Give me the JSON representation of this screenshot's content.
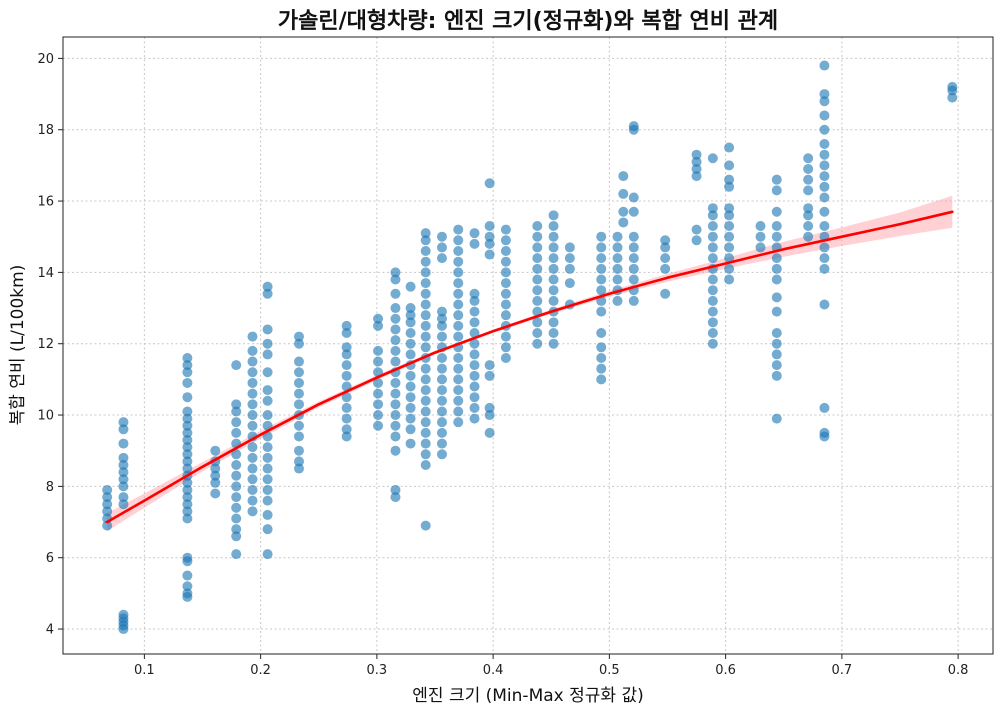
{
  "chart_data": {
    "type": "scatter",
    "title": "가솔린/대형차량: 엔진 크기(정규화)와 복합 연비 관계",
    "xlabel": "엔진 크기 (Min-Max 정규화 값)",
    "ylabel": "복합 연비 (L/100km)",
    "xlim": [
      0.03,
      0.83
    ],
    "ylim": [
      3.3,
      20.6
    ],
    "x_ticks": [
      0.1,
      0.2,
      0.3,
      0.4,
      0.5,
      0.6,
      0.7,
      0.8
    ],
    "x_tick_labels": [
      "0.1",
      "0.2",
      "0.3",
      "0.4",
      "0.5",
      "0.6",
      "0.7",
      "0.8"
    ],
    "y_ticks": [
      4,
      6,
      8,
      10,
      12,
      14,
      16,
      18,
      20
    ],
    "y_tick_labels": [
      "4",
      "6",
      "8",
      "10",
      "12",
      "14",
      "16",
      "18",
      "20"
    ],
    "grid": true,
    "colors": {
      "points": "#1f77b4",
      "trend": "#ff0000",
      "band": "#ff9aa2"
    },
    "scatter_columns": [
      {
        "x": 0.068,
        "y": [
          6.9,
          7.1,
          7.3,
          7.5,
          7.7,
          7.9
        ]
      },
      {
        "x": 0.082,
        "y": [
          4.0,
          4.1,
          4.2,
          4.3,
          4.4,
          7.5,
          7.7,
          8.0,
          8.2,
          8.4,
          8.6,
          8.8,
          9.2,
          9.6,
          9.8
        ]
      },
      {
        "x": 0.137,
        "y": [
          4.9,
          5.0,
          5.2,
          5.5,
          5.9,
          6.0,
          7.1,
          7.3,
          7.5,
          7.7,
          7.9,
          8.1,
          8.3,
          8.5,
          8.7,
          8.9,
          9.1,
          9.3,
          9.5,
          9.7,
          9.9,
          10.1,
          10.5,
          10.9,
          11.2,
          11.4,
          11.6
        ]
      },
      {
        "x": 0.161,
        "y": [
          7.8,
          8.1,
          8.3,
          8.5,
          8.7,
          9.0
        ]
      },
      {
        "x": 0.179,
        "y": [
          6.1,
          6.6,
          6.8,
          7.1,
          7.4,
          7.7,
          8.0,
          8.3,
          8.6,
          8.9,
          9.2,
          9.5,
          9.8,
          10.1,
          10.3,
          11.4
        ]
      },
      {
        "x": 0.193,
        "y": [
          7.3,
          7.6,
          7.9,
          8.2,
          8.5,
          8.8,
          9.1,
          9.4,
          9.7,
          10.0,
          10.3,
          10.6,
          10.9,
          11.2,
          11.5,
          11.8,
          12.2
        ]
      },
      {
        "x": 0.206,
        "y": [
          6.1,
          6.8,
          7.2,
          7.6,
          7.9,
          8.2,
          8.5,
          8.8,
          9.1,
          9.4,
          9.7,
          10.0,
          10.4,
          10.7,
          11.2,
          11.7,
          12.0,
          12.4,
          13.4,
          13.6
        ]
      },
      {
        "x": 0.233,
        "y": [
          8.5,
          8.7,
          9.0,
          9.4,
          9.7,
          10.0,
          10.3,
          10.6,
          10.9,
          11.2,
          11.5,
          12.0,
          12.2
        ]
      },
      {
        "x": 0.274,
        "y": [
          9.4,
          9.6,
          9.9,
          10.2,
          10.5,
          10.8,
          11.1,
          11.4,
          11.7,
          11.9,
          12.3,
          12.5
        ]
      },
      {
        "x": 0.301,
        "y": [
          9.7,
          10.0,
          10.3,
          10.6,
          10.9,
          11.2,
          11.5,
          11.8,
          12.5,
          12.7
        ]
      },
      {
        "x": 0.316,
        "y": [
          7.7,
          7.9,
          9.0,
          9.4,
          9.7,
          10.0,
          10.3,
          10.6,
          10.9,
          11.2,
          11.5,
          11.8,
          12.1,
          12.4,
          12.7,
          13.0,
          13.4,
          13.8,
          14.0
        ]
      },
      {
        "x": 0.329,
        "y": [
          9.2,
          9.6,
          9.9,
          10.2,
          10.5,
          10.8,
          11.1,
          11.4,
          11.7,
          12.0,
          12.3,
          12.6,
          12.8,
          13.0,
          13.6
        ]
      },
      {
        "x": 0.342,
        "y": [
          6.9,
          8.6,
          8.9,
          9.2,
          9.5,
          9.8,
          10.1,
          10.4,
          10.7,
          11.0,
          11.3,
          11.6,
          11.9,
          12.2,
          12.5,
          12.8,
          13.1,
          13.4,
          13.7,
          14.0,
          14.3,
          14.6,
          14.9,
          15.1
        ]
      },
      {
        "x": 0.356,
        "y": [
          8.9,
          9.2,
          9.5,
          9.8,
          10.1,
          10.4,
          10.7,
          11.0,
          11.3,
          11.6,
          11.9,
          12.2,
          12.5,
          12.7,
          12.9,
          14.4,
          14.7,
          15.0
        ]
      },
      {
        "x": 0.37,
        "y": [
          9.8,
          10.1,
          10.4,
          10.7,
          11.0,
          11.3,
          11.6,
          11.9,
          12.2,
          12.5,
          12.8,
          13.1,
          13.4,
          13.7,
          14.0,
          14.3,
          14.6,
          14.9,
          15.2
        ]
      },
      {
        "x": 0.384,
        "y": [
          9.9,
          10.2,
          10.5,
          10.8,
          11.1,
          11.4,
          11.7,
          12.0,
          12.3,
          12.6,
          12.9,
          13.2,
          13.4,
          14.8,
          15.1
        ]
      },
      {
        "x": 0.397,
        "y": [
          9.5,
          10.0,
          10.2,
          11.1,
          11.4,
          14.5,
          14.8,
          15.0,
          15.3,
          16.5
        ]
      },
      {
        "x": 0.411,
        "y": [
          11.6,
          11.9,
          12.2,
          12.5,
          12.8,
          13.1,
          13.4,
          13.7,
          14.0,
          14.3,
          14.6,
          14.9,
          15.2
        ]
      },
      {
        "x": 0.438,
        "y": [
          12.0,
          12.3,
          12.6,
          12.9,
          13.2,
          13.5,
          13.8,
          14.1,
          14.4,
          14.7,
          15.0,
          15.3
        ]
      },
      {
        "x": 0.452,
        "y": [
          12.0,
          12.3,
          12.6,
          12.9,
          13.2,
          13.5,
          13.8,
          14.1,
          14.4,
          14.7,
          15.0,
          15.3,
          15.6
        ]
      },
      {
        "x": 0.466,
        "y": [
          13.1,
          13.7,
          14.1,
          14.4,
          14.7
        ]
      },
      {
        "x": 0.493,
        "y": [
          11.0,
          11.3,
          11.6,
          11.9,
          12.3,
          12.9,
          13.2,
          13.5,
          13.8,
          14.1,
          14.4,
          14.7,
          15.0
        ]
      },
      {
        "x": 0.507,
        "y": [
          13.2,
          13.5,
          13.8,
          14.1,
          14.4,
          14.7,
          15.0
        ]
      },
      {
        "x": 0.512,
        "y": [
          15.4,
          15.7,
          16.2,
          16.7
        ]
      },
      {
        "x": 0.521,
        "y": [
          13.2,
          13.5,
          13.8,
          14.1,
          14.4,
          14.7,
          15.0,
          15.7,
          16.1,
          18.0,
          18.1
        ]
      },
      {
        "x": 0.548,
        "y": [
          13.4,
          14.1,
          14.4,
          14.7,
          14.9
        ]
      },
      {
        "x": 0.575,
        "y": [
          14.9,
          15.2,
          16.7,
          16.9,
          17.1,
          17.3
        ]
      },
      {
        "x": 0.589,
        "y": [
          12.0,
          12.3,
          12.6,
          12.9,
          13.2,
          13.5,
          13.8,
          14.1,
          14.4,
          14.7,
          15.0,
          15.3,
          15.6,
          15.8,
          17.2
        ]
      },
      {
        "x": 0.603,
        "y": [
          13.8,
          14.1,
          14.4,
          14.7,
          15.0,
          15.3,
          15.6,
          15.8,
          16.4,
          16.6,
          17.0,
          17.5
        ]
      },
      {
        "x": 0.63,
        "y": [
          14.7,
          15.0,
          15.3
        ]
      },
      {
        "x": 0.644,
        "y": [
          9.9,
          11.1,
          11.4,
          11.7,
          12.0,
          12.3,
          12.9,
          13.3,
          13.8,
          14.1,
          14.4,
          14.7,
          15.0,
          15.3,
          15.7,
          16.3,
          16.6
        ]
      },
      {
        "x": 0.671,
        "y": [
          15.0,
          15.3,
          15.6,
          15.8,
          16.3,
          16.6,
          16.9,
          17.2
        ]
      },
      {
        "x": 0.685,
        "y": [
          9.4,
          9.5,
          10.2,
          13.1,
          14.1,
          14.4,
          14.7,
          15.0,
          15.3,
          15.7,
          16.1,
          16.4,
          16.7,
          17.0,
          17.3,
          17.6,
          18.0,
          18.4,
          18.8,
          19.0,
          19.8
        ]
      },
      {
        "x": 0.795,
        "y": [
          18.9,
          19.1,
          19.2
        ]
      }
    ],
    "trend_line": {
      "x": [
        0.068,
        0.1,
        0.15,
        0.2,
        0.25,
        0.3,
        0.35,
        0.4,
        0.45,
        0.5,
        0.55,
        0.6,
        0.65,
        0.7,
        0.75,
        0.795
      ],
      "y": [
        7.0,
        7.6,
        8.55,
        9.45,
        10.3,
        11.05,
        11.75,
        12.35,
        12.9,
        13.4,
        13.85,
        14.25,
        14.65,
        15.0,
        15.35,
        15.7
      ],
      "band_lower": [
        6.75,
        7.4,
        8.42,
        9.34,
        10.22,
        10.98,
        11.7,
        12.3,
        12.84,
        13.32,
        13.74,
        14.1,
        14.44,
        14.74,
        15.02,
        15.25
      ],
      "band_upper": [
        7.25,
        7.8,
        8.68,
        9.56,
        10.38,
        11.12,
        11.8,
        12.4,
        12.96,
        13.48,
        13.96,
        14.4,
        14.86,
        15.26,
        15.68,
        16.15
      ]
    }
  }
}
